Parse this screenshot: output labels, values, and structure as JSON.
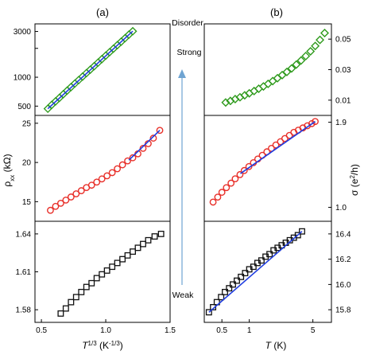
{
  "panel_labels": [
    "(a)",
    "(b)"
  ],
  "annotations": {
    "top": "Disorder",
    "middle": "Strong",
    "bottom": "Weak"
  },
  "axes": {
    "left_ylabel": {
      "main": "ρ",
      "sub": "xx",
      "unit": " (kΩ)"
    },
    "right_ylabel": {
      "main": "σ (e",
      "sup": "2",
      "unit": "/h)"
    },
    "left_xlabel": {
      "main": "T",
      "sup1": "1/3",
      "unit": " (K",
      "sup2": "-1/3",
      "close": ")"
    },
    "right_xlabel": {
      "main": "T",
      "unit": " (K)"
    }
  },
  "colors": {
    "top": "#2e9a1c",
    "middle": "#e8302a",
    "bottom": "#111111",
    "fit": "#1f3de0",
    "arrow": "#6fa4d2"
  },
  "chart_data": [
    {
      "id": "a-top",
      "type": "scatter",
      "marker": "diamond",
      "color_key": "top",
      "xscale": "linear",
      "xlim": [
        0.45,
        1.5
      ],
      "yscale": "log",
      "ylim": [
        400,
        3600
      ],
      "yticks": [
        500,
        1000,
        2000,
        3000
      ],
      "ytick_labels": [
        "500",
        "1000",
        "",
        "3000"
      ],
      "x": [
        0.55,
        0.58,
        0.61,
        0.64,
        0.67,
        0.7,
        0.73,
        0.76,
        0.79,
        0.82,
        0.85,
        0.88,
        0.91,
        0.94,
        0.97,
        1.0,
        1.03,
        1.06,
        1.09,
        1.12,
        1.15,
        1.18,
        1.21
      ],
      "y": [
        470,
        515,
        560,
        610,
        665,
        725,
        790,
        860,
        935,
        1015,
        1105,
        1200,
        1305,
        1420,
        1545,
        1680,
        1825,
        1985,
        2160,
        2350,
        2555,
        2780,
        3020
      ],
      "fit": {
        "x": [
          0.55,
          1.21
        ],
        "y": [
          470,
          3020
        ]
      }
    },
    {
      "id": "a-mid",
      "type": "scatter",
      "marker": "circle",
      "color_key": "middle",
      "xscale": "linear",
      "xlim": [
        0.45,
        1.5
      ],
      "yscale": "linear",
      "ylim": [
        12.5,
        26
      ],
      "yticks": [
        15,
        20,
        25
      ],
      "ytick_labels": [
        "15",
        "20",
        "25"
      ],
      "x": [
        0.57,
        0.61,
        0.65,
        0.69,
        0.73,
        0.77,
        0.81,
        0.85,
        0.89,
        0.93,
        0.97,
        1.01,
        1.05,
        1.09,
        1.13,
        1.17,
        1.21,
        1.25,
        1.29,
        1.33,
        1.37,
        1.42
      ],
      "y": [
        13.9,
        14.4,
        14.8,
        15.2,
        15.6,
        16.0,
        16.4,
        16.8,
        17.1,
        17.5,
        17.9,
        18.3,
        18.7,
        19.2,
        19.7,
        20.2,
        20.6,
        21.1,
        21.8,
        22.4,
        23.1,
        24.1
      ],
      "fit": {
        "x": [
          1.18,
          1.42
        ],
        "y": [
          20.3,
          24.1
        ]
      }
    },
    {
      "id": "a-bot",
      "type": "scatter",
      "marker": "square",
      "color_key": "bottom",
      "xscale": "linear",
      "xlim": [
        0.45,
        1.5
      ],
      "yscale": "linear",
      "ylim": [
        1.57,
        1.65
      ],
      "yticks": [
        1.58,
        1.61,
        1.64
      ],
      "ytick_labels": [
        "1.58",
        "1.61",
        "1.64"
      ],
      "xticks": [
        0.5,
        1.0,
        1.5
      ],
      "xtick_labels": [
        "0.5",
        "1.0",
        "1.5"
      ],
      "x": [
        0.65,
        0.69,
        0.73,
        0.77,
        0.81,
        0.85,
        0.89,
        0.93,
        0.97,
        1.01,
        1.05,
        1.09,
        1.13,
        1.17,
        1.21,
        1.25,
        1.29,
        1.33,
        1.38,
        1.43
      ],
      "y": [
        1.577,
        1.581,
        1.586,
        1.59,
        1.594,
        1.598,
        1.601,
        1.605,
        1.608,
        1.611,
        1.614,
        1.617,
        1.62,
        1.623,
        1.626,
        1.629,
        1.632,
        1.635,
        1.638,
        1.64
      ]
    },
    {
      "id": "b-top",
      "type": "scatter",
      "marker": "diamond",
      "color_key": "top",
      "xscale": "log",
      "xlim": [
        0.32,
        8
      ],
      "yscale": "linear",
      "ylim": [
        0.0,
        0.06
      ],
      "yticks": [
        0.01,
        0.03,
        0.05
      ],
      "ytick_labels": [
        "0.01",
        "0.03",
        "0.05"
      ],
      "x": [
        0.55,
        0.62,
        0.7,
        0.79,
        0.89,
        1.0,
        1.13,
        1.27,
        1.43,
        1.61,
        1.81,
        2.04,
        2.3,
        2.59,
        2.92,
        3.29,
        3.71,
        4.18,
        4.71,
        5.31,
        5.98,
        6.74
      ],
      "y": [
        0.0085,
        0.0095,
        0.0107,
        0.0119,
        0.0132,
        0.0145,
        0.016,
        0.0175,
        0.019,
        0.0207,
        0.0225,
        0.0244,
        0.0264,
        0.0285,
        0.0308,
        0.0333,
        0.036,
        0.0389,
        0.042,
        0.0455,
        0.0495,
        0.054
      ]
    },
    {
      "id": "b-mid",
      "type": "scatter",
      "marker": "circle",
      "color_key": "middle",
      "xscale": "log",
      "xlim": [
        0.32,
        8
      ],
      "yscale": "log",
      "ylim": [
        0.9,
        2.0
      ],
      "yticks": [
        1.0,
        1.9
      ],
      "ytick_labels": [
        "1.0",
        "1.9"
      ],
      "x": [
        0.4,
        0.45,
        0.5,
        0.56,
        0.63,
        0.7,
        0.79,
        0.88,
        0.99,
        1.11,
        1.24,
        1.39,
        1.56,
        1.75,
        1.96,
        2.2,
        2.46,
        2.76,
        3.09,
        3.46,
        3.88,
        4.35,
        4.87,
        5.3
      ],
      "y": [
        1.04,
        1.08,
        1.12,
        1.16,
        1.2,
        1.24,
        1.28,
        1.32,
        1.36,
        1.4,
        1.44,
        1.48,
        1.52,
        1.56,
        1.6,
        1.64,
        1.68,
        1.72,
        1.76,
        1.79,
        1.82,
        1.85,
        1.88,
        1.91
      ],
      "fit": {
        "x": [
          0.8,
          5.3
        ],
        "y": [
          1.29,
          1.91
        ]
      }
    },
    {
      "id": "b-bot",
      "type": "scatter",
      "marker": "square",
      "color_key": "bottom",
      "xscale": "log",
      "xlim": [
        0.32,
        8
      ],
      "yscale": "linear",
      "ylim": [
        15.7,
        16.5
      ],
      "yticks": [
        15.8,
        16.0,
        16.2,
        16.4
      ],
      "ytick_labels": [
        "15.8",
        "16.0",
        "16.2",
        "16.4"
      ],
      "xticks": [
        0.5,
        1,
        5
      ],
      "xtick_labels": [
        "0.5",
        "1",
        "5"
      ],
      "x": [
        0.36,
        0.4,
        0.44,
        0.49,
        0.54,
        0.6,
        0.66,
        0.73,
        0.81,
        0.9,
        1.0,
        1.11,
        1.23,
        1.36,
        1.51,
        1.67,
        1.85,
        2.05,
        2.27,
        2.52,
        2.79,
        3.09,
        3.42,
        3.8
      ],
      "y": [
        15.78,
        15.82,
        15.86,
        15.9,
        15.94,
        15.97,
        16.0,
        16.03,
        16.06,
        16.09,
        16.12,
        16.14,
        16.17,
        16.19,
        16.22,
        16.24,
        16.27,
        16.29,
        16.31,
        16.33,
        16.35,
        16.37,
        16.39,
        16.42
      ],
      "fit": {
        "x": [
          0.36,
          3.8
        ],
        "y": [
          15.78,
          16.42
        ]
      }
    }
  ]
}
